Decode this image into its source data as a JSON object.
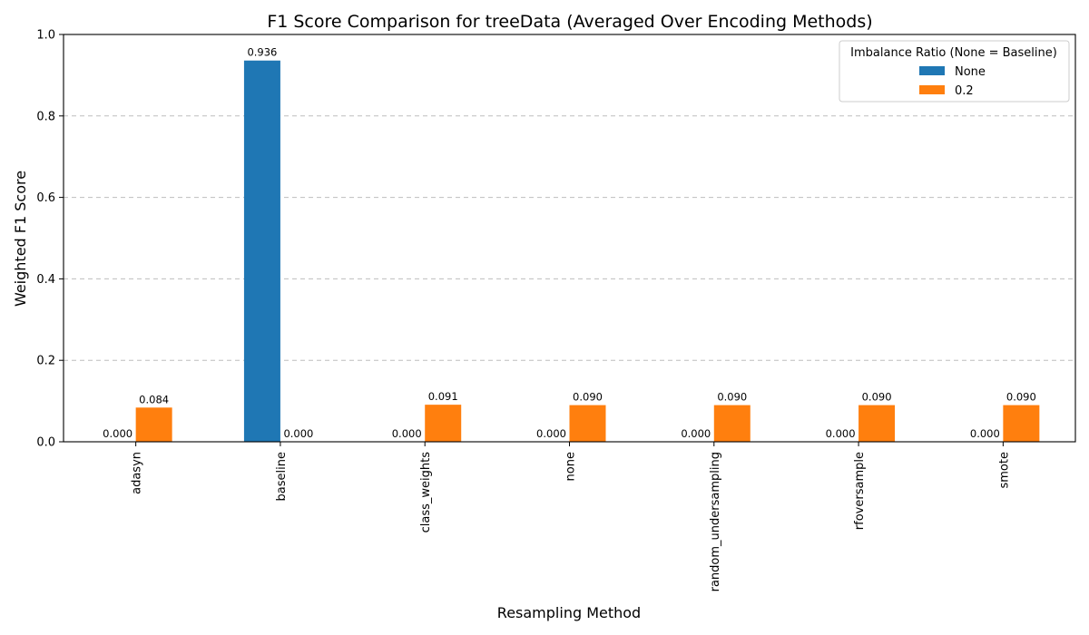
{
  "chart_data": {
    "type": "bar",
    "title": "F1 Score Comparison for treeData (Averaged Over Encoding Methods)",
    "xlabel": "Resampling Method",
    "ylabel": "Weighted F1 Score",
    "ylim": [
      0,
      1
    ],
    "yticks": [
      0.0,
      0.2,
      0.4,
      0.6,
      0.8,
      1.0
    ],
    "ytick_labels": [
      "0.0",
      "0.2",
      "0.4",
      "0.6",
      "0.8",
      "1.0"
    ],
    "grid": "y-dashed",
    "categories": [
      "adasyn",
      "baseline",
      "class_weights",
      "none",
      "random_undersampling",
      "rfoversample",
      "smote"
    ],
    "series": [
      {
        "name": "None",
        "color": "#1f77b4",
        "values": [
          0.0,
          0.936,
          0.0,
          0.0,
          0.0,
          0.0,
          0.0
        ],
        "labels": [
          "0.000",
          "0.936",
          "0.000",
          "0.000",
          "0.000",
          "0.000",
          "0.000"
        ]
      },
      {
        "name": "0.2",
        "color": "#ff7f0e",
        "values": [
          0.084,
          0.0,
          0.091,
          0.09,
          0.09,
          0.09,
          0.09
        ],
        "labels": [
          "0.084",
          "0.000",
          "0.091",
          "0.090",
          "0.090",
          "0.090",
          "0.090"
        ]
      }
    ],
    "legend": {
      "title": "Imbalance Ratio (None = Baseline)",
      "placement": "top-right"
    }
  }
}
